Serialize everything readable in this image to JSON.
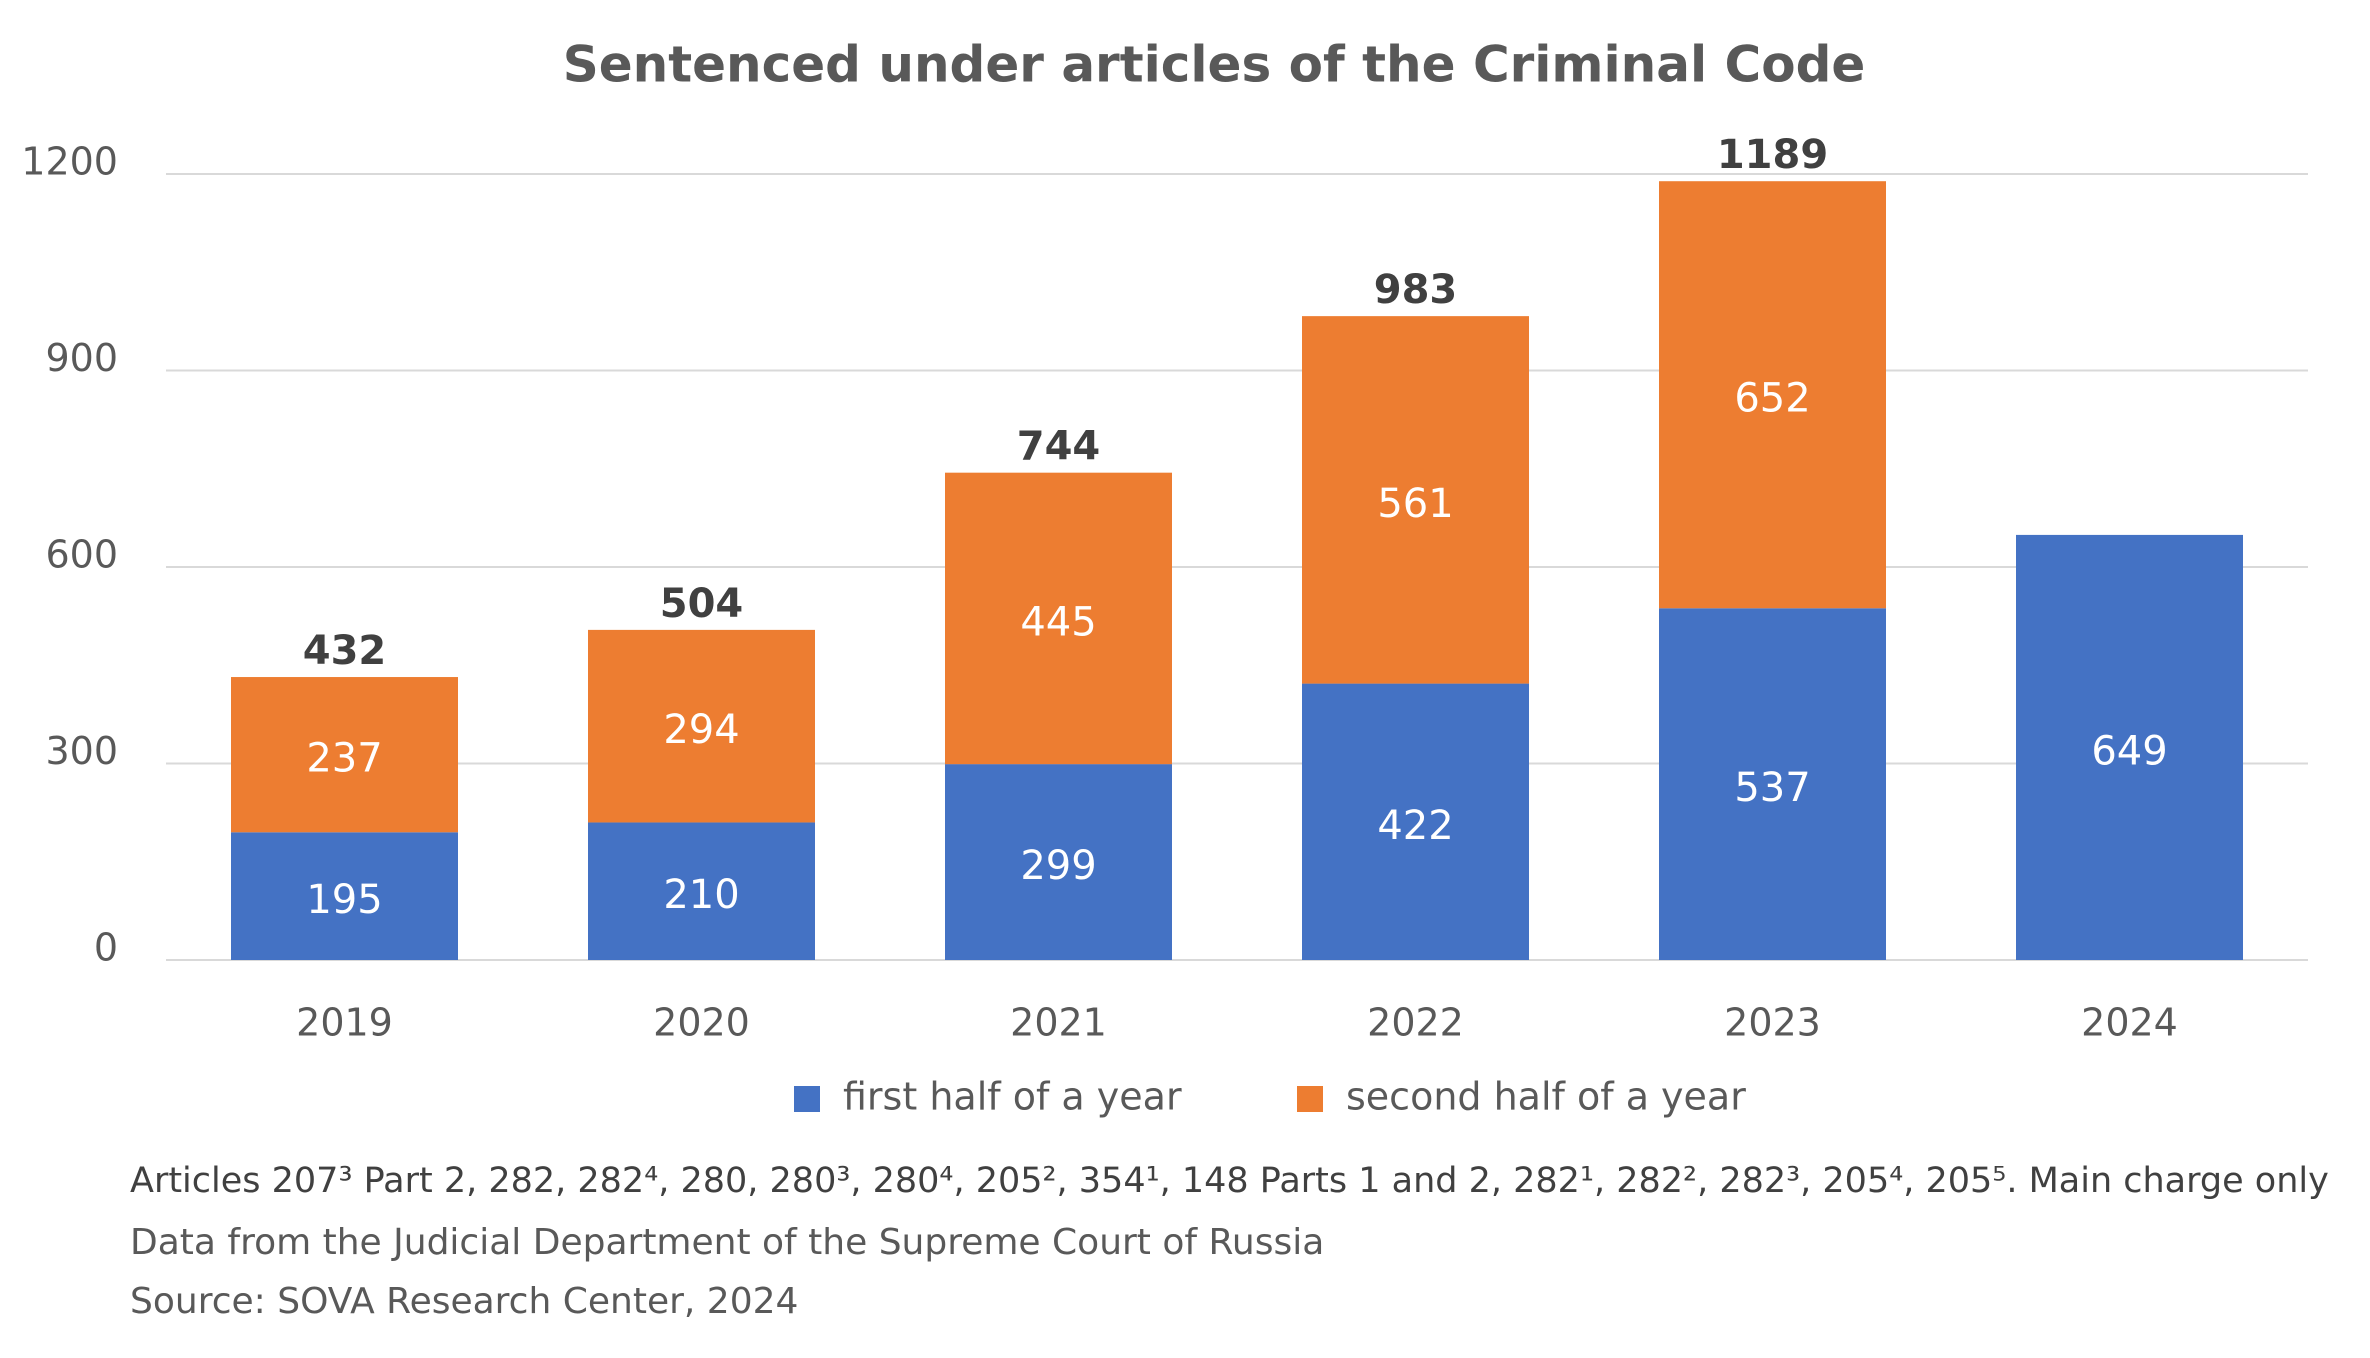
{
  "chart_data": {
    "type": "stacked_bar",
    "title": "Sentenced under articles of the Criminal Code",
    "categories": [
      "2019",
      "2020",
      "2021",
      "2022",
      "2023",
      "2024"
    ],
    "series": [
      {
        "name": "first half of a year",
        "color": "#4472c4",
        "values": [
          195,
          210,
          299,
          422,
          537,
          649
        ]
      },
      {
        "name": "second half of a year",
        "color": "#ed7d31",
        "values": [
          237,
          294,
          445,
          561,
          652,
          null
        ]
      }
    ],
    "totals": [
      432,
      504,
      744,
      983,
      1189,
      null
    ],
    "ylim": [
      0,
      1200
    ],
    "yticks": [
      0,
      300,
      600,
      900,
      1200
    ],
    "grid": true,
    "legend": "bottom",
    "notes": [
      "Articles 207³ Part 2, 282, 282⁴, 280, 280³, 280⁴, 205², 354¹, 148 Parts 1 and 2, 282¹, 282², 282³, 205⁴, 205⁵. Main charge only",
      "Data from the Judicial Department of the Supreme Court of Russia",
      "Source:  SOVA Research Center, 2024"
    ]
  }
}
